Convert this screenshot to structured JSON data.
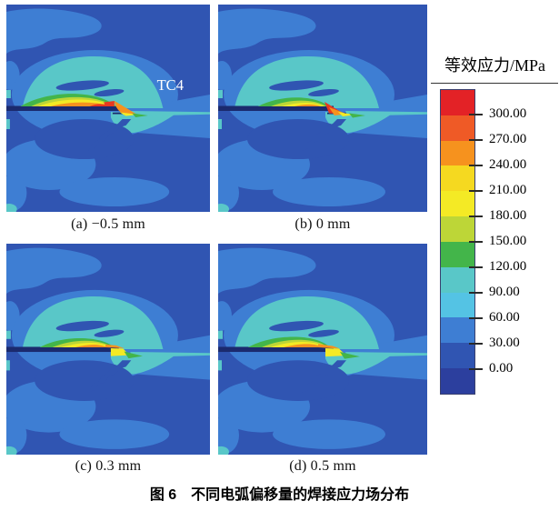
{
  "chart_data": {
    "type": "heatmap",
    "subtype": "welding-equivalent-stress-contour-maps",
    "title": "图 6　不同电弧偏移量的焊接应力场分布",
    "legend": {
      "title": "等效应力/MPa",
      "unit": "MPa",
      "position": "right",
      "tick_values": [
        300,
        270,
        240,
        210,
        180,
        150,
        120,
        90,
        60,
        30,
        0
      ],
      "tick_labels": [
        "300.00",
        "270.00",
        "240.00",
        "210.00",
        "180.00",
        "150.00",
        "120.00",
        "90.00",
        "60.00",
        "30.00",
        "0.00"
      ],
      "band_colors": [
        "#e32226",
        "#ef5a26",
        "#f6921e",
        "#f5d920",
        "#f4ea25",
        "#bdd637",
        "#43b54a",
        "#59c7c8",
        "#54c3e4",
        "#3e7ed3",
        "#3055b2",
        "#2c3f9e"
      ]
    },
    "panels": [
      {
        "id": "a",
        "label": "(a) −0.5 mm",
        "arc_offset_mm": -0.5,
        "annotation": "TC4"
      },
      {
        "id": "b",
        "label": "(b) 0 mm",
        "arc_offset_mm": 0,
        "annotation": ""
      },
      {
        "id": "c",
        "label": "(c) 0.3 mm",
        "arc_offset_mm": 0.3,
        "annotation": ""
      },
      {
        "id": "d",
        "label": "(d) 0.5 mm",
        "arc_offset_mm": 0.5,
        "annotation": ""
      }
    ],
    "contour_palette": {
      "base_blue": "#3055b2",
      "blob_blue": "#3e7ed3",
      "teal": "#59c7c8",
      "green": "#43b54a",
      "yellow_green": "#bdd637",
      "yellow": "#f4ea25",
      "orange": "#f6921e",
      "red": "#e8391f",
      "interface_line": "#1b2a6e"
    }
  }
}
